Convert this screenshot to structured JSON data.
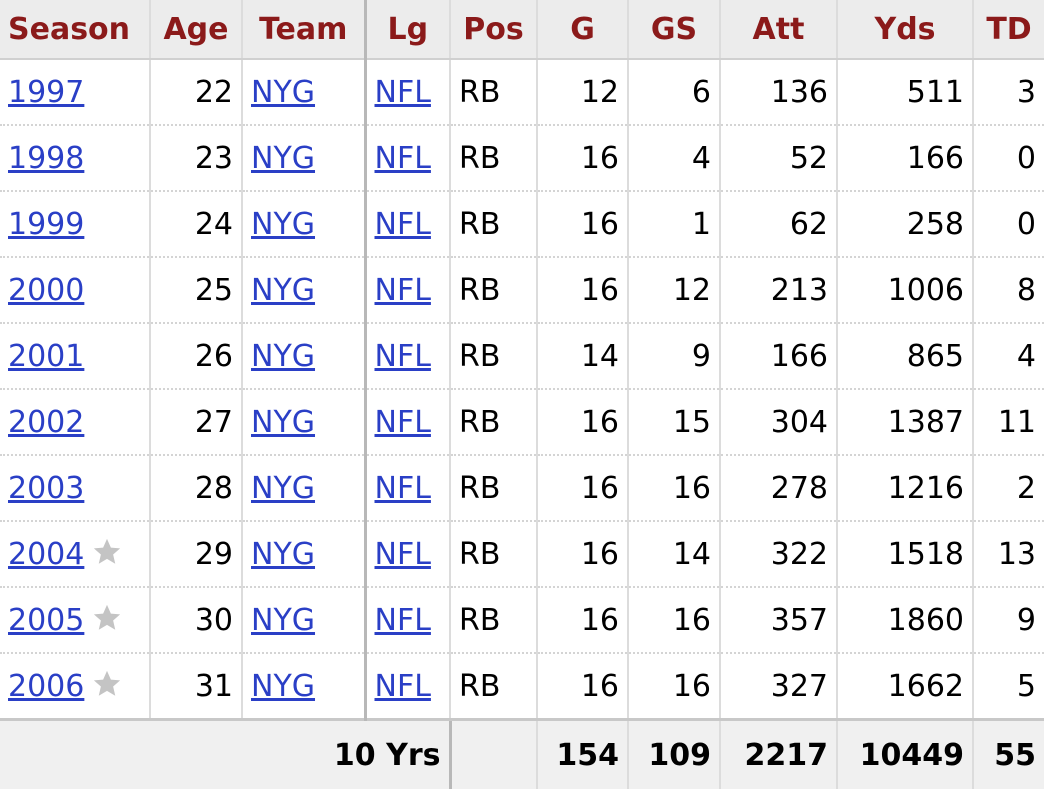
{
  "table": {
    "headers": [
      "Season",
      "Age",
      "Team",
      "Lg",
      "Pos",
      "G",
      "GS",
      "Att",
      "Yds",
      "TD"
    ],
    "rows": [
      [
        "1997",
        22,
        "NYG",
        "NFL",
        "RB",
        12,
        6,
        136,
        511,
        3
      ],
      [
        "1998",
        23,
        "NYG",
        "NFL",
        "RB",
        16,
        4,
        52,
        166,
        0
      ],
      [
        "1999",
        24,
        "NYG",
        "NFL",
        "RB",
        16,
        1,
        62,
        258,
        0
      ],
      [
        "2000",
        25,
        "NYG",
        "NFL",
        "RB",
        16,
        12,
        213,
        1006,
        8
      ],
      [
        "2001",
        26,
        "NYG",
        "NFL",
        "RB",
        14,
        9,
        166,
        865,
        4
      ],
      [
        "2002",
        27,
        "NYG",
        "NFL",
        "RB",
        16,
        15,
        304,
        1387,
        11
      ],
      [
        "2003",
        28,
        "NYG",
        "NFL",
        "RB",
        16,
        16,
        278,
        1216,
        2
      ],
      [
        "2004",
        29,
        "NYG",
        "NFL",
        "RB",
        16,
        14,
        322,
        1518,
        13
      ],
      [
        "2005",
        30,
        "NYG",
        "NFL",
        "RB",
        16,
        16,
        357,
        1860,
        9
      ],
      [
        "2006",
        31,
        "NYG",
        "NFL",
        "RB",
        16,
        16,
        327,
        1662,
        5
      ]
    ],
    "footer": {
      "label": "10 Yrs",
      "values": [
        154,
        109,
        2217,
        10449,
        55
      ]
    }
  }
}
